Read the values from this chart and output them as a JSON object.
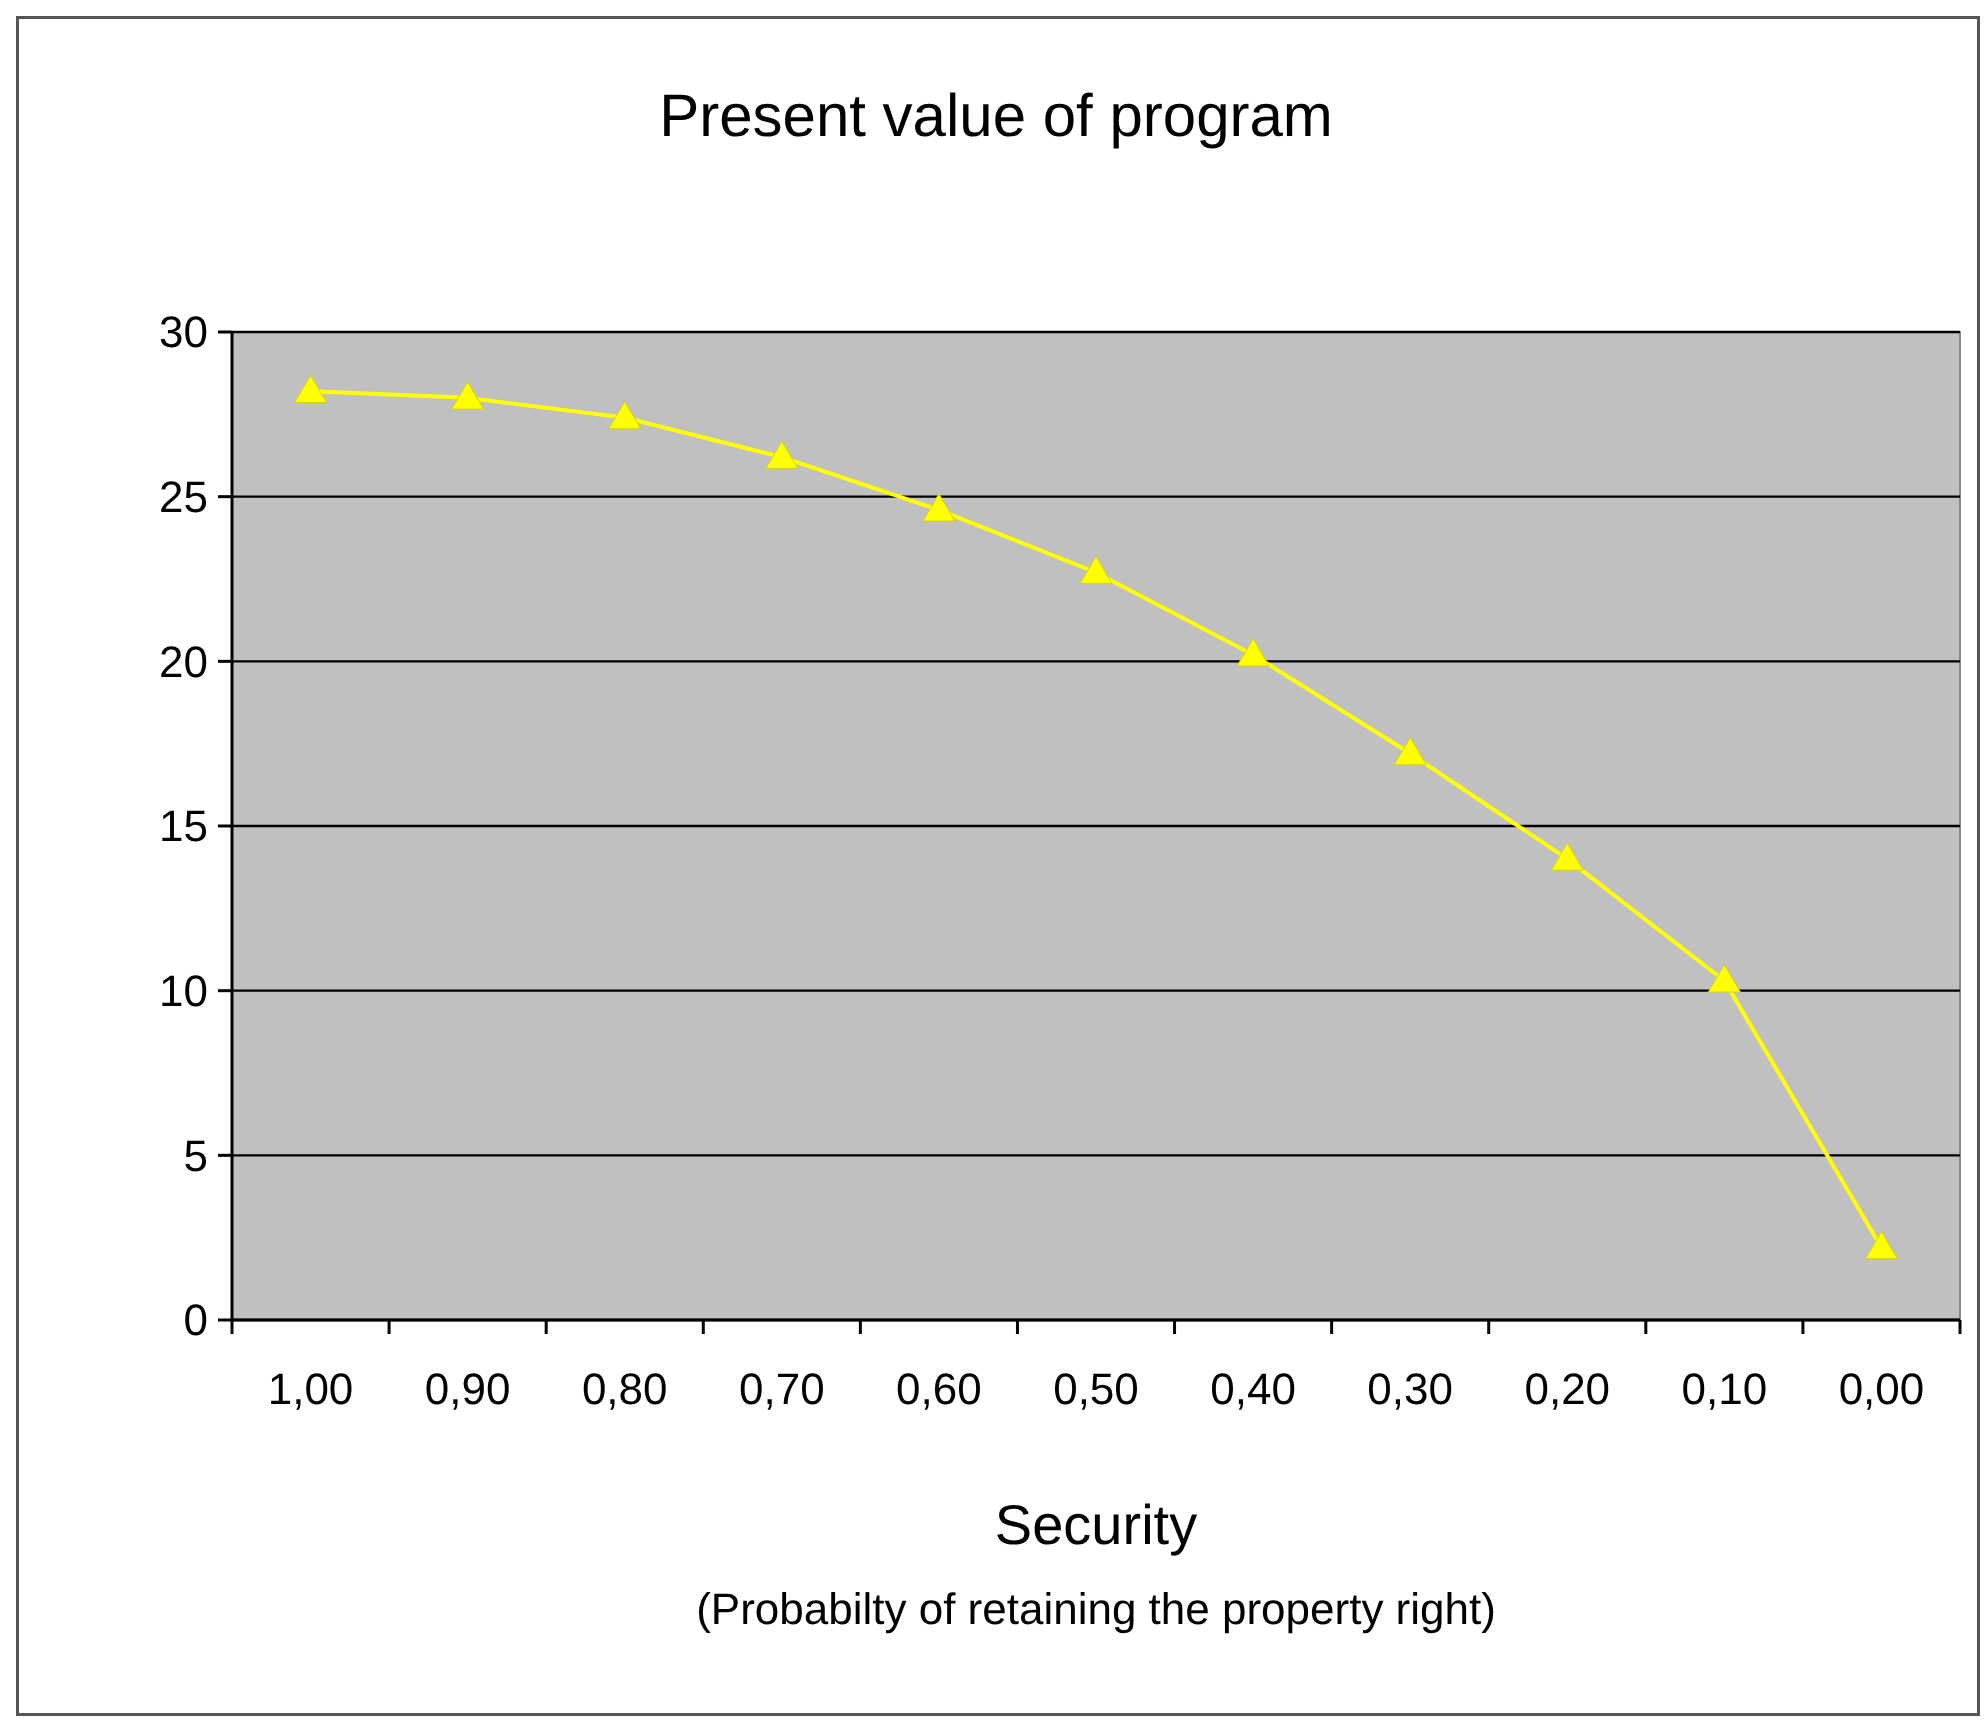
{
  "chart_data": {
    "type": "line",
    "title": "Present value of program",
    "xlabel": "Security",
    "annotations": [
      "(Probabilty of retaining the property right)"
    ],
    "categories": [
      "1,00",
      "0,90",
      "0,80",
      "0,70",
      "0,60",
      "0,50",
      "0,40",
      "0,30",
      "0,20",
      "0,10",
      "0,00"
    ],
    "series": [
      {
        "color": "#ffff00",
        "values": [
          28.2,
          28.0,
          27.4,
          26.2,
          24.6,
          22.7,
          20.2,
          17.2,
          14.0,
          10.3,
          2.2
        ]
      }
    ],
    "ylim": [
      0,
      30
    ],
    "yticks": [
      0,
      5,
      10,
      15,
      20,
      25,
      30
    ],
    "grid": "y",
    "marker": "triangle",
    "line_style": "solid"
  }
}
